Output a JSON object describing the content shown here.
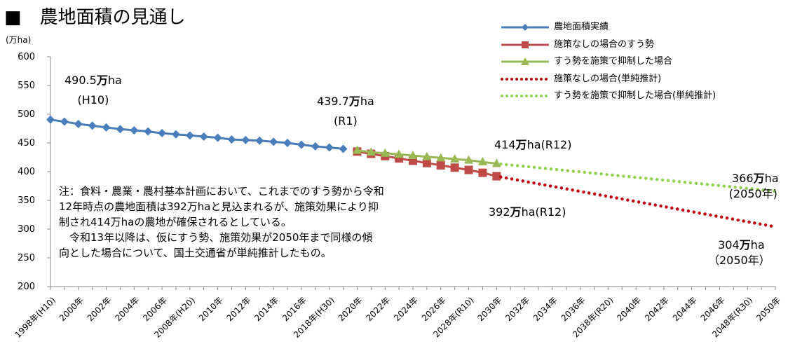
{
  "title": "■　農地面積の見通し",
  "unit_label": "(万ha)",
  "chart_data": {
    "type": "line",
    "title": "■　農地面積の見通し",
    "ylabel": "(万ha)",
    "xlabel": "",
    "ylim": [
      200,
      600
    ],
    "yticks": [
      200,
      250,
      300,
      350,
      400,
      450,
      500,
      550,
      600
    ],
    "xlim": [
      1998,
      2050
    ],
    "x_tick_labels": [
      "1998年(H10)",
      "2000年",
      "2002年",
      "2004年",
      "2006年",
      "2008年(H20)",
      "2010年",
      "2012年",
      "2014年",
      "2016年",
      "2018年(H30)",
      "2020年",
      "2022年",
      "2024年",
      "2026年",
      "2028年(R10)",
      "2030年",
      "2032年",
      "2034年",
      "2036年",
      "2038年(R20)",
      "2040年",
      "2042年",
      "2044年",
      "2046年",
      "2048年(R30)",
      "2050年"
    ],
    "grid": false,
    "legend_position": "top-right",
    "series": [
      {
        "name": "農地面積実績",
        "color": "#4a7ebb",
        "style": "line-diamond",
        "x": [
          1998,
          1999,
          2000,
          2001,
          2002,
          2003,
          2004,
          2005,
          2006,
          2007,
          2008,
          2009,
          2010,
          2011,
          2012,
          2013,
          2014,
          2015,
          2016,
          2017,
          2018,
          2019
        ],
        "y": [
          490.5,
          487,
          483,
          480,
          477,
          474,
          472,
          470,
          467,
          465,
          463,
          461,
          459,
          456,
          455,
          454,
          452,
          450,
          447,
          444,
          442,
          439.7
        ]
      },
      {
        "name": "施策なしの場合のすう勢",
        "color": "#be4b48",
        "style": "line-square",
        "x": [
          2020,
          2021,
          2022,
          2023,
          2024,
          2025,
          2026,
          2027,
          2028,
          2029,
          2030
        ],
        "y": [
          435,
          431,
          427,
          423,
          419,
          415,
          411,
          407,
          403,
          398,
          392
        ]
      },
      {
        "name": "すう勢を施策で抑制した場合",
        "color": "#98b954",
        "style": "line-triangle",
        "x": [
          2020,
          2021,
          2022,
          2023,
          2024,
          2025,
          2026,
          2027,
          2028,
          2029,
          2030
        ],
        "y": [
          437,
          434,
          432,
          430,
          428,
          426,
          424,
          422,
          420,
          417,
          414
        ]
      },
      {
        "name": "施策なしの場合(単純推計)",
        "color": "#c0000c",
        "style": "dotted",
        "x": [
          2030,
          2050
        ],
        "y": [
          392,
          304
        ]
      },
      {
        "name": "すう勢を施策で抑制した場合(単純推計)",
        "color": "#92d050",
        "style": "dotted",
        "x": [
          2030,
          2050
        ],
        "y": [
          414,
          366
        ]
      }
    ],
    "annotations": {
      "start": {
        "value": "490.5",
        "unit": "万",
        "suffix": "ha",
        "note": "(H10)"
      },
      "r1": {
        "value": "439.7",
        "unit": "万",
        "suffix": "ha",
        "note": "(R1)"
      },
      "upper_r12": {
        "value": "414",
        "unit": "万",
        "suffix": "ha(R12)"
      },
      "lower_r12": {
        "value": "392",
        "unit": "万",
        "suffix": "ha(R12)"
      },
      "upper_2050": {
        "value": "366",
        "unit": "万",
        "suffix": "ha",
        "note": "(2050年)"
      },
      "lower_2050": {
        "value": "304",
        "unit": "万",
        "suffix": "ha",
        "note": "（2050年）"
      }
    },
    "note_lines": [
      "注：食料・農業・農村基本計画において、これまでのすう勢から令和",
      "12年時点の農地面積は392万haと見込まれるが、施策効果により抑",
      "制され414万haの農地が確保されるとしている。",
      "　令和13年以降は、仮にすう勢、施策効果が2050年まで同様の傾",
      "向とした場合について、国土交通省が単純推計したもの。"
    ]
  }
}
